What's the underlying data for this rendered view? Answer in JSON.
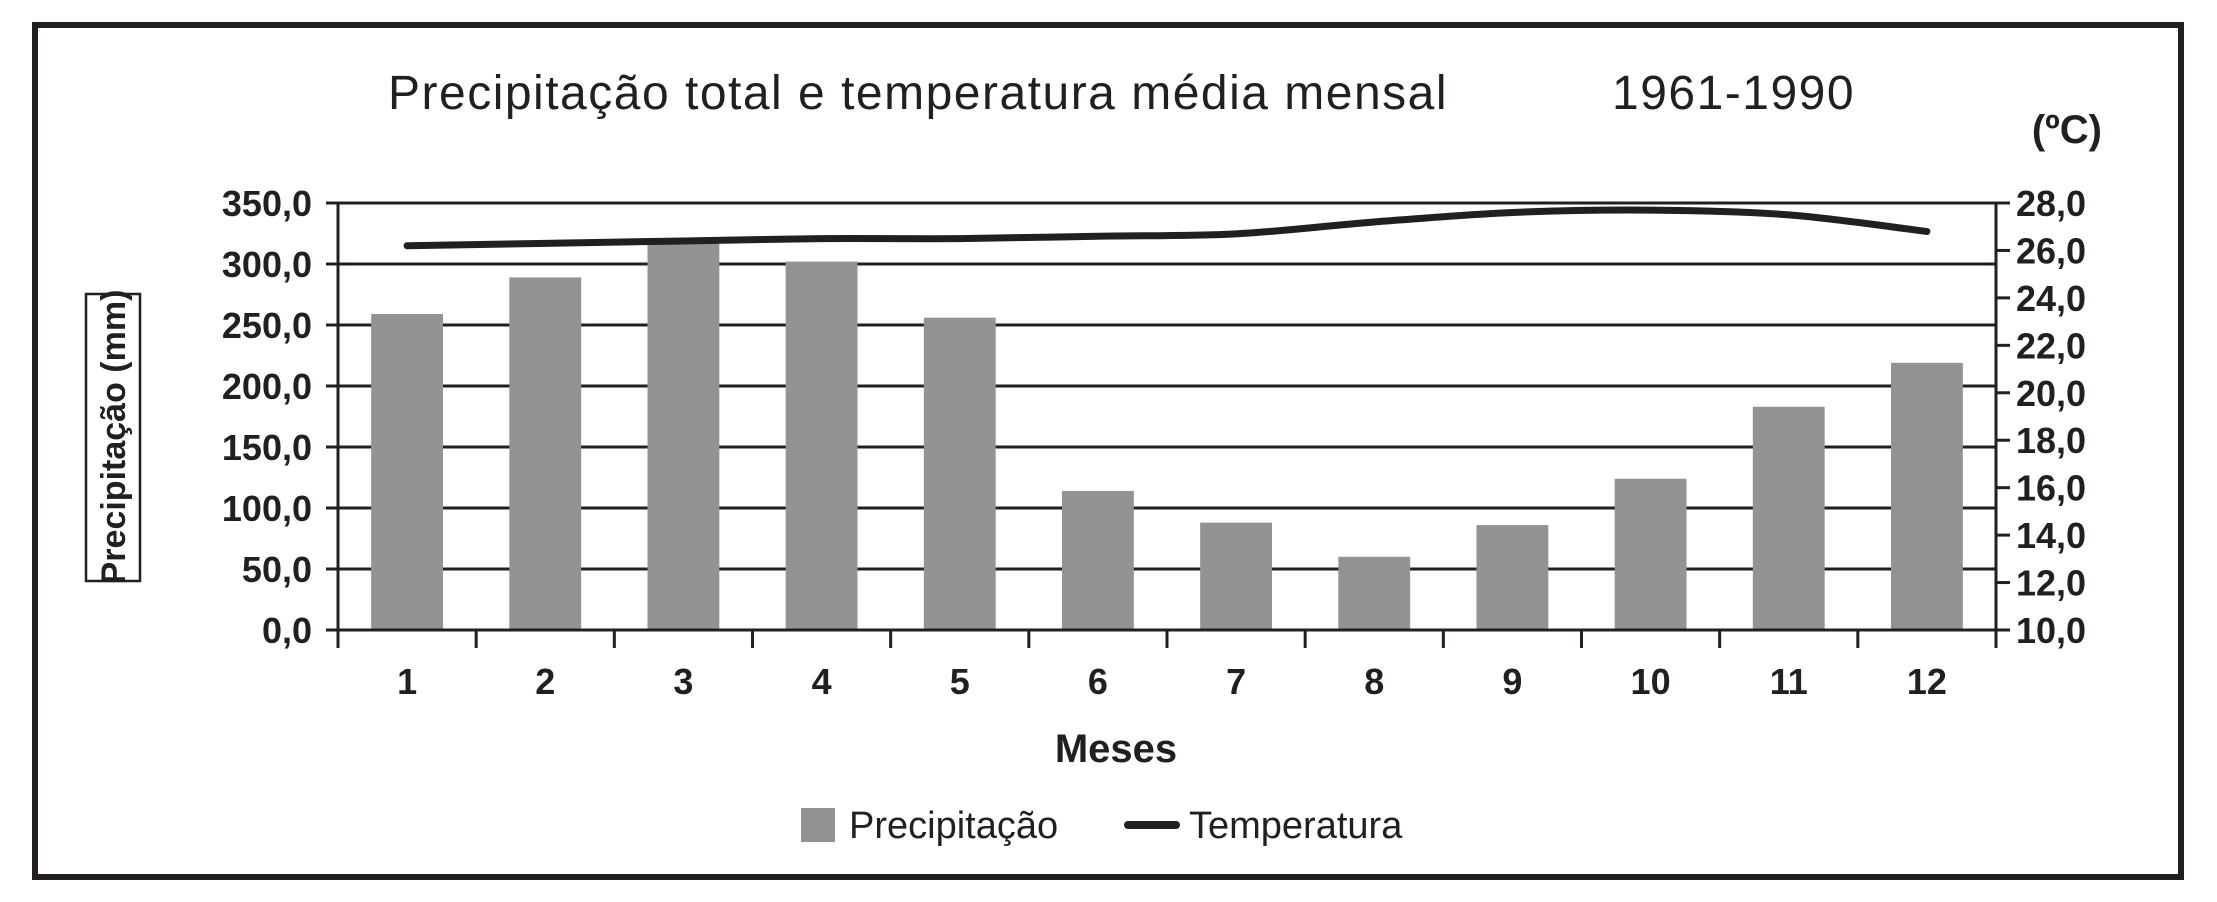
{
  "chart_data": {
    "type": "bar",
    "title": "Precipitação total e temperatura média mensal",
    "period": "1961-1990",
    "xlabel": "Meses",
    "ylabel": "Precipitação (mm)",
    "y2label": "(ºC)",
    "categories": [
      "1",
      "2",
      "3",
      "4",
      "5",
      "6",
      "7",
      "8",
      "9",
      "10",
      "11",
      "12"
    ],
    "ylim": [
      0,
      350
    ],
    "y2lim": [
      10,
      28
    ],
    "yticks": [
      "0,0",
      "50,0",
      "100,0",
      "150,0",
      "200,0",
      "250,0",
      "300,0",
      "350,0"
    ],
    "y2ticks": [
      "10,0",
      "12,0",
      "14,0",
      "16,0",
      "18,0",
      "20,0",
      "22,0",
      "24,0",
      "26,0",
      "28,0"
    ],
    "grid": true,
    "legend_position": "bottom",
    "series": [
      {
        "name": "Precipitação",
        "type": "bar",
        "axis": "left",
        "color": "#939393",
        "values": [
          259,
          289,
          318,
          302,
          256,
          114,
          88,
          60,
          86,
          124,
          183,
          219
        ]
      },
      {
        "name": "Temperatura",
        "type": "line",
        "axis": "right",
        "color": "#231f20",
        "values": [
          26.2,
          26.3,
          26.4,
          26.5,
          26.5,
          26.6,
          26.7,
          27.2,
          27.6,
          27.7,
          27.5,
          26.8
        ]
      }
    ]
  },
  "colors": {
    "ink": "#231f20",
    "bar": "#939393",
    "background": "#ffffff"
  }
}
